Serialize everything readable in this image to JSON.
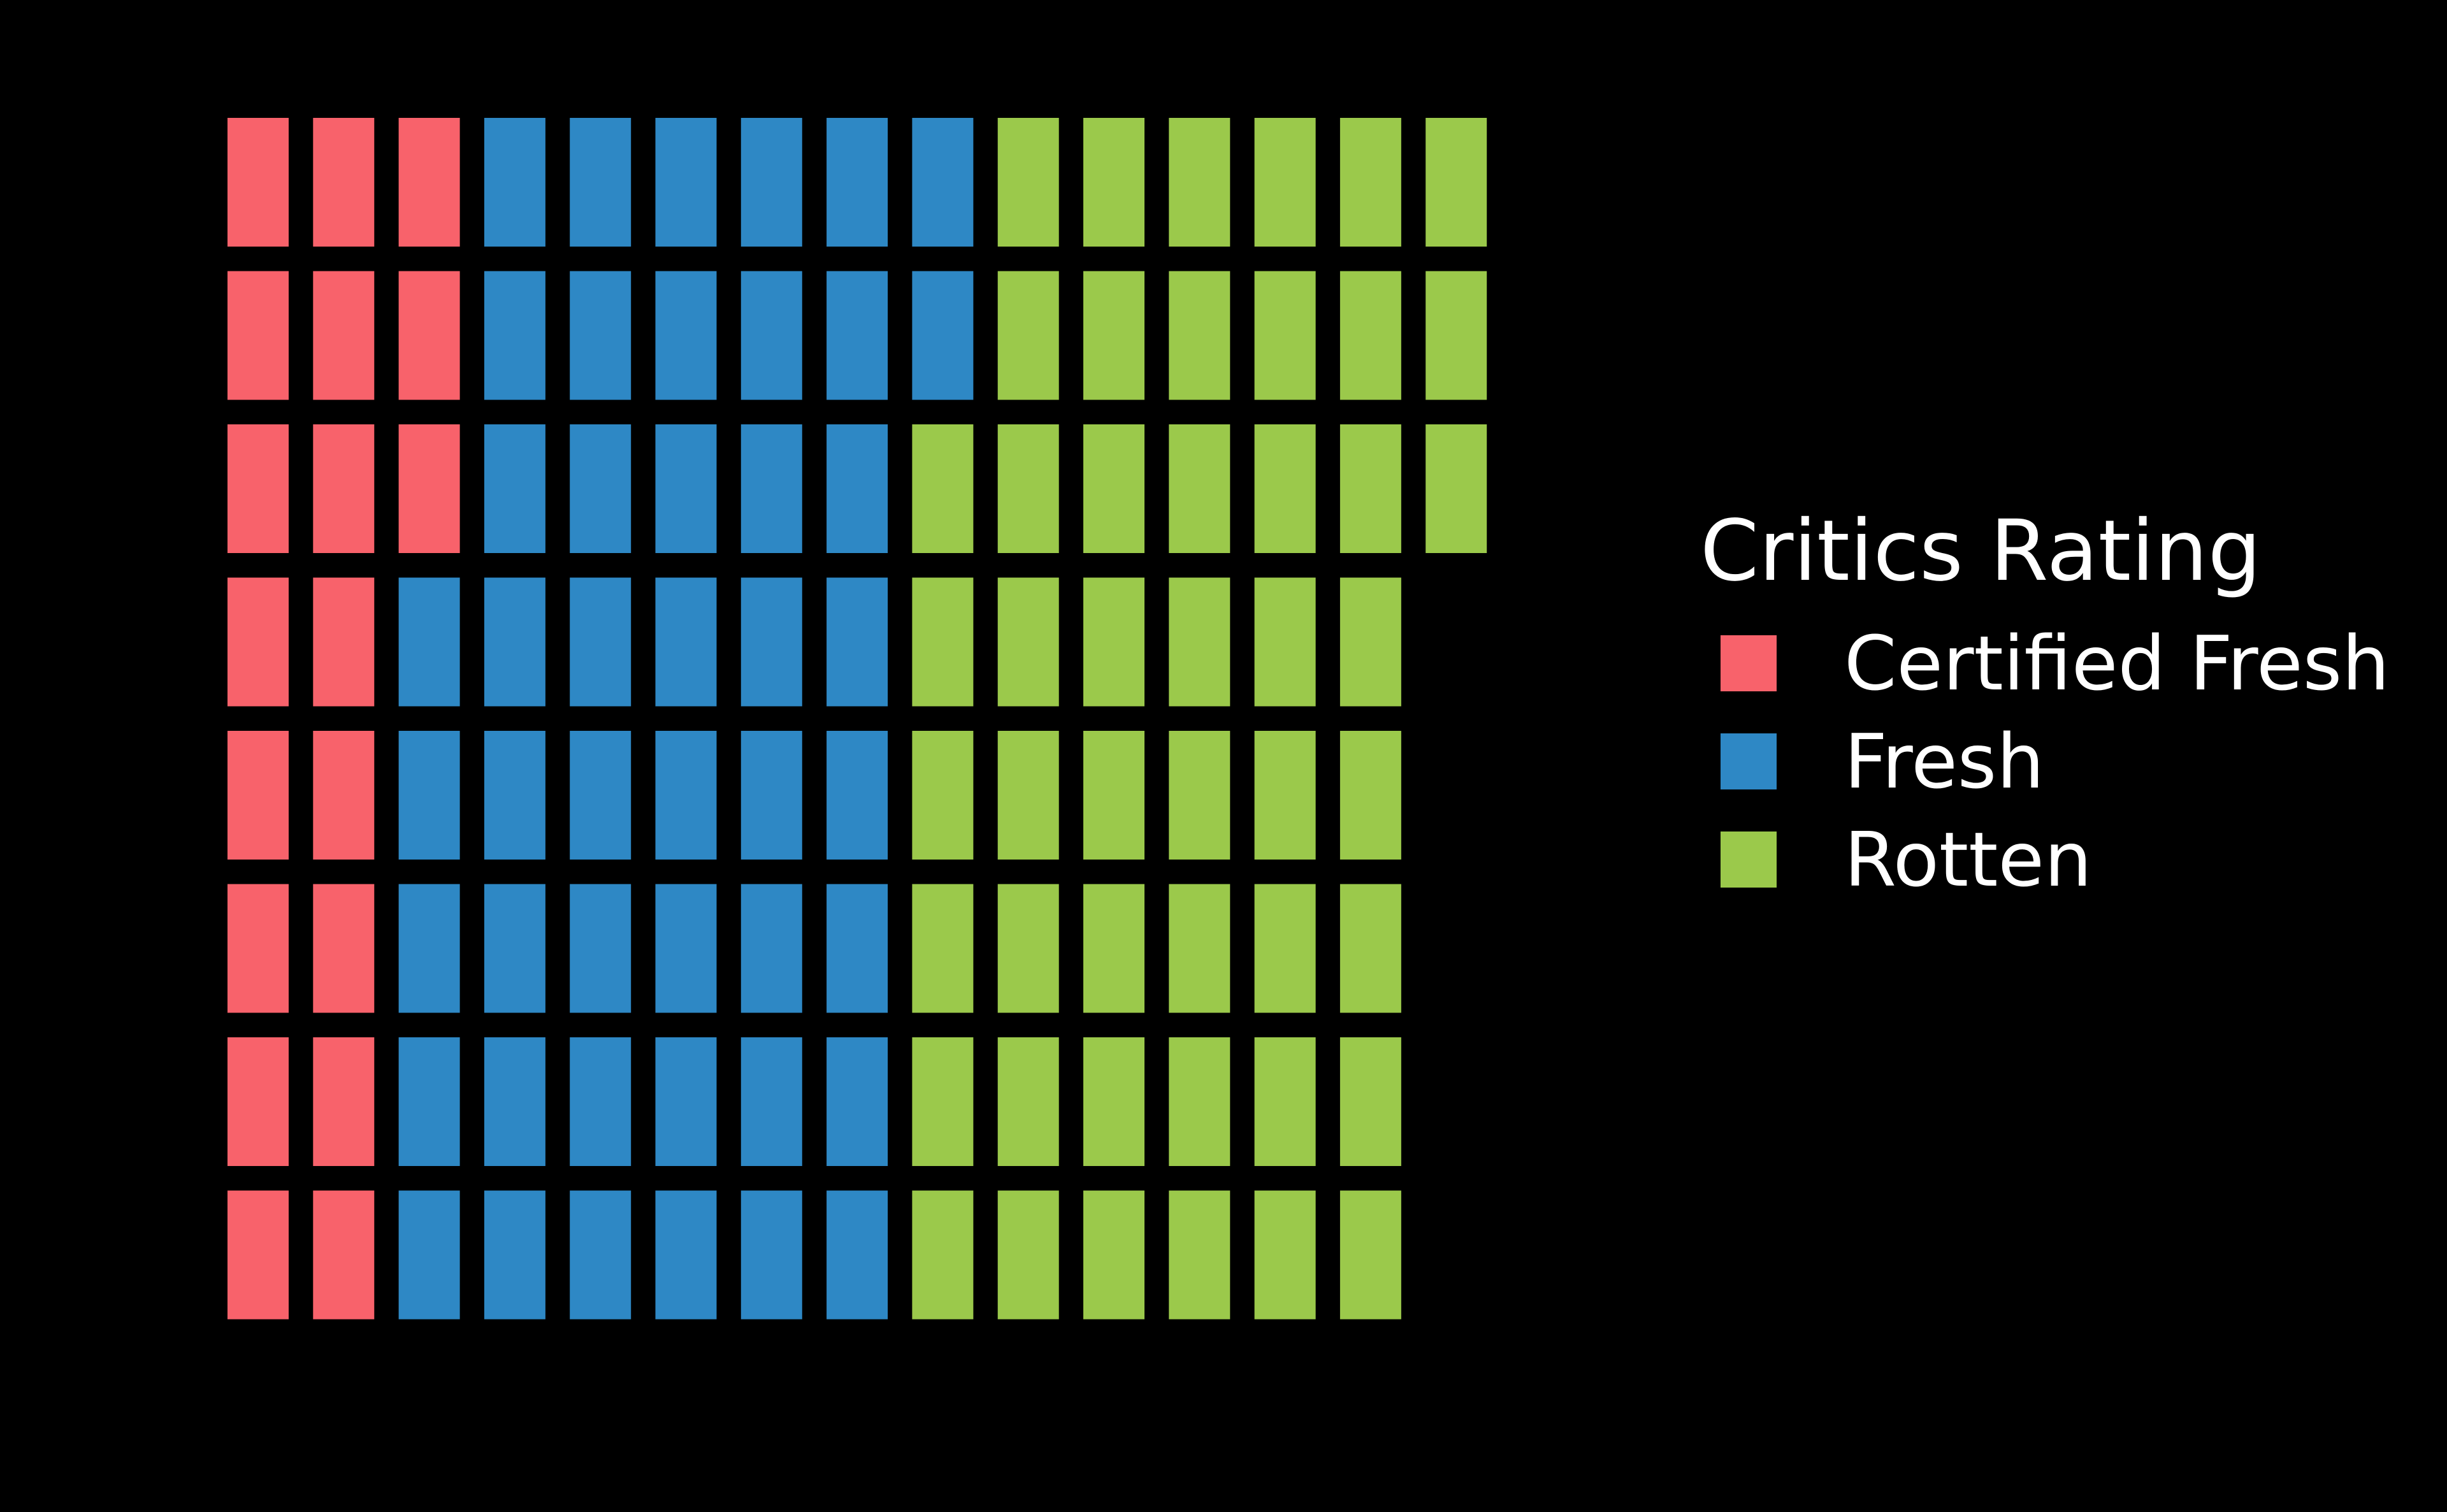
{
  "chart_data": {
    "type": "waffle",
    "unit": "square",
    "legend_title": "Critics Rating",
    "legend_position": "right",
    "fill_order": "column-major, top to bottom, left to right",
    "column_height": 8,
    "series": [
      {
        "name": "Certified Fresh",
        "count": 19,
        "color": "#F8626B"
      },
      {
        "name": "Fresh",
        "count": 47,
        "color": "#2E88C5"
      },
      {
        "name": "Rotten",
        "count": 49,
        "color": "#9BC94B"
      }
    ],
    "total": 115,
    "background": "#000000",
    "axes": "none",
    "grid": false
  }
}
